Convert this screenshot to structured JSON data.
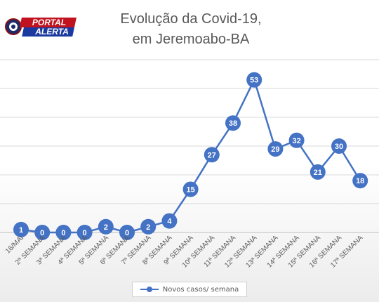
{
  "logo": {
    "line1": "PORTAL",
    "line2": "ALERTA"
  },
  "chart_data": {
    "type": "line",
    "title_line1": "Evolução da Covid-19,",
    "title_line2": "em Jeremoabo-BA",
    "categories": [
      "16/MAI",
      "2ª SEMANA",
      "3ª SEMANA",
      "4ª SEMANA",
      "5ª SEMANA",
      "6ª SEMANA",
      "7ª SEMANA",
      "8ª SEMANA",
      "9ª SEMANA",
      "10ª SEMANA",
      "11ª SEMANA",
      "12ª SEMANA",
      "13ª SEMANA",
      "14ª SEMANA",
      "15ª SEMANA",
      "16ª SEMANA",
      "17ª SEMANA"
    ],
    "series": [
      {
        "name": "Novos casos/ semana",
        "color": "#4472c4",
        "values": [
          1,
          0,
          0,
          0,
          2,
          0,
          2,
          4,
          15,
          27,
          38,
          53,
          29,
          32,
          21,
          30,
          18
        ]
      }
    ],
    "ylim": [
      0,
      60
    ],
    "grid": true,
    "legend_position": "bottom"
  }
}
